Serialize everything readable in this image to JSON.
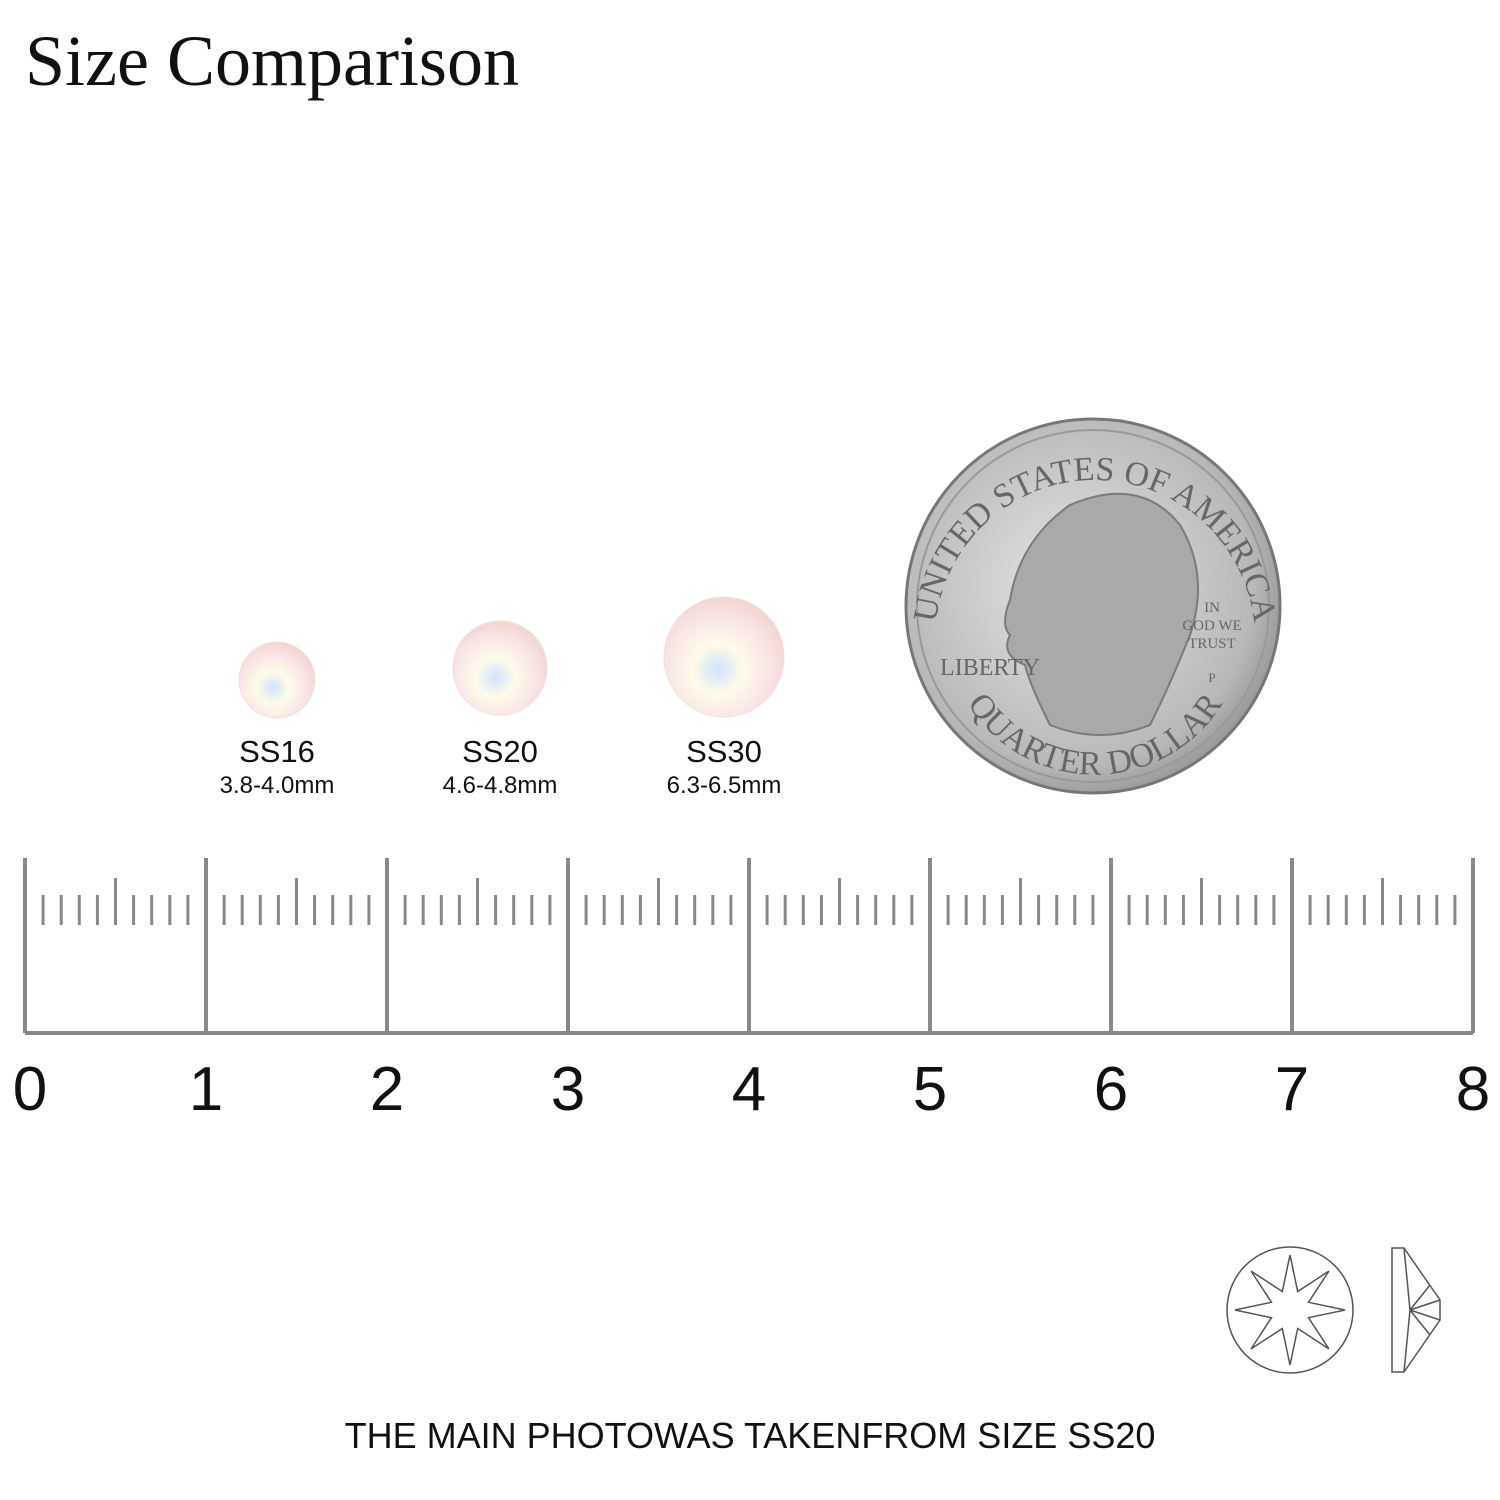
{
  "title": "Size Comparison",
  "items": [
    {
      "label": "SS16",
      "size": "3.8-4.0mm"
    },
    {
      "label": "SS20",
      "size": "4.6-4.8mm"
    },
    {
      "label": "SS30",
      "size": "6.3-6.5mm"
    }
  ],
  "coin": {
    "top": "UNITED STATES OF AMERICA",
    "left": "LIBERTY",
    "motto": [
      "IN",
      "GOD WE",
      "TRUST"
    ],
    "mint": "P",
    "bottom": "QUARTER DOLLAR"
  },
  "ruler": {
    "labels": [
      "0",
      "1",
      "2",
      "3",
      "4",
      "5",
      "6",
      "7",
      "8"
    ]
  },
  "footer": "THE MAIN PHOTOWAS TAKENFROM SIZE SS20"
}
